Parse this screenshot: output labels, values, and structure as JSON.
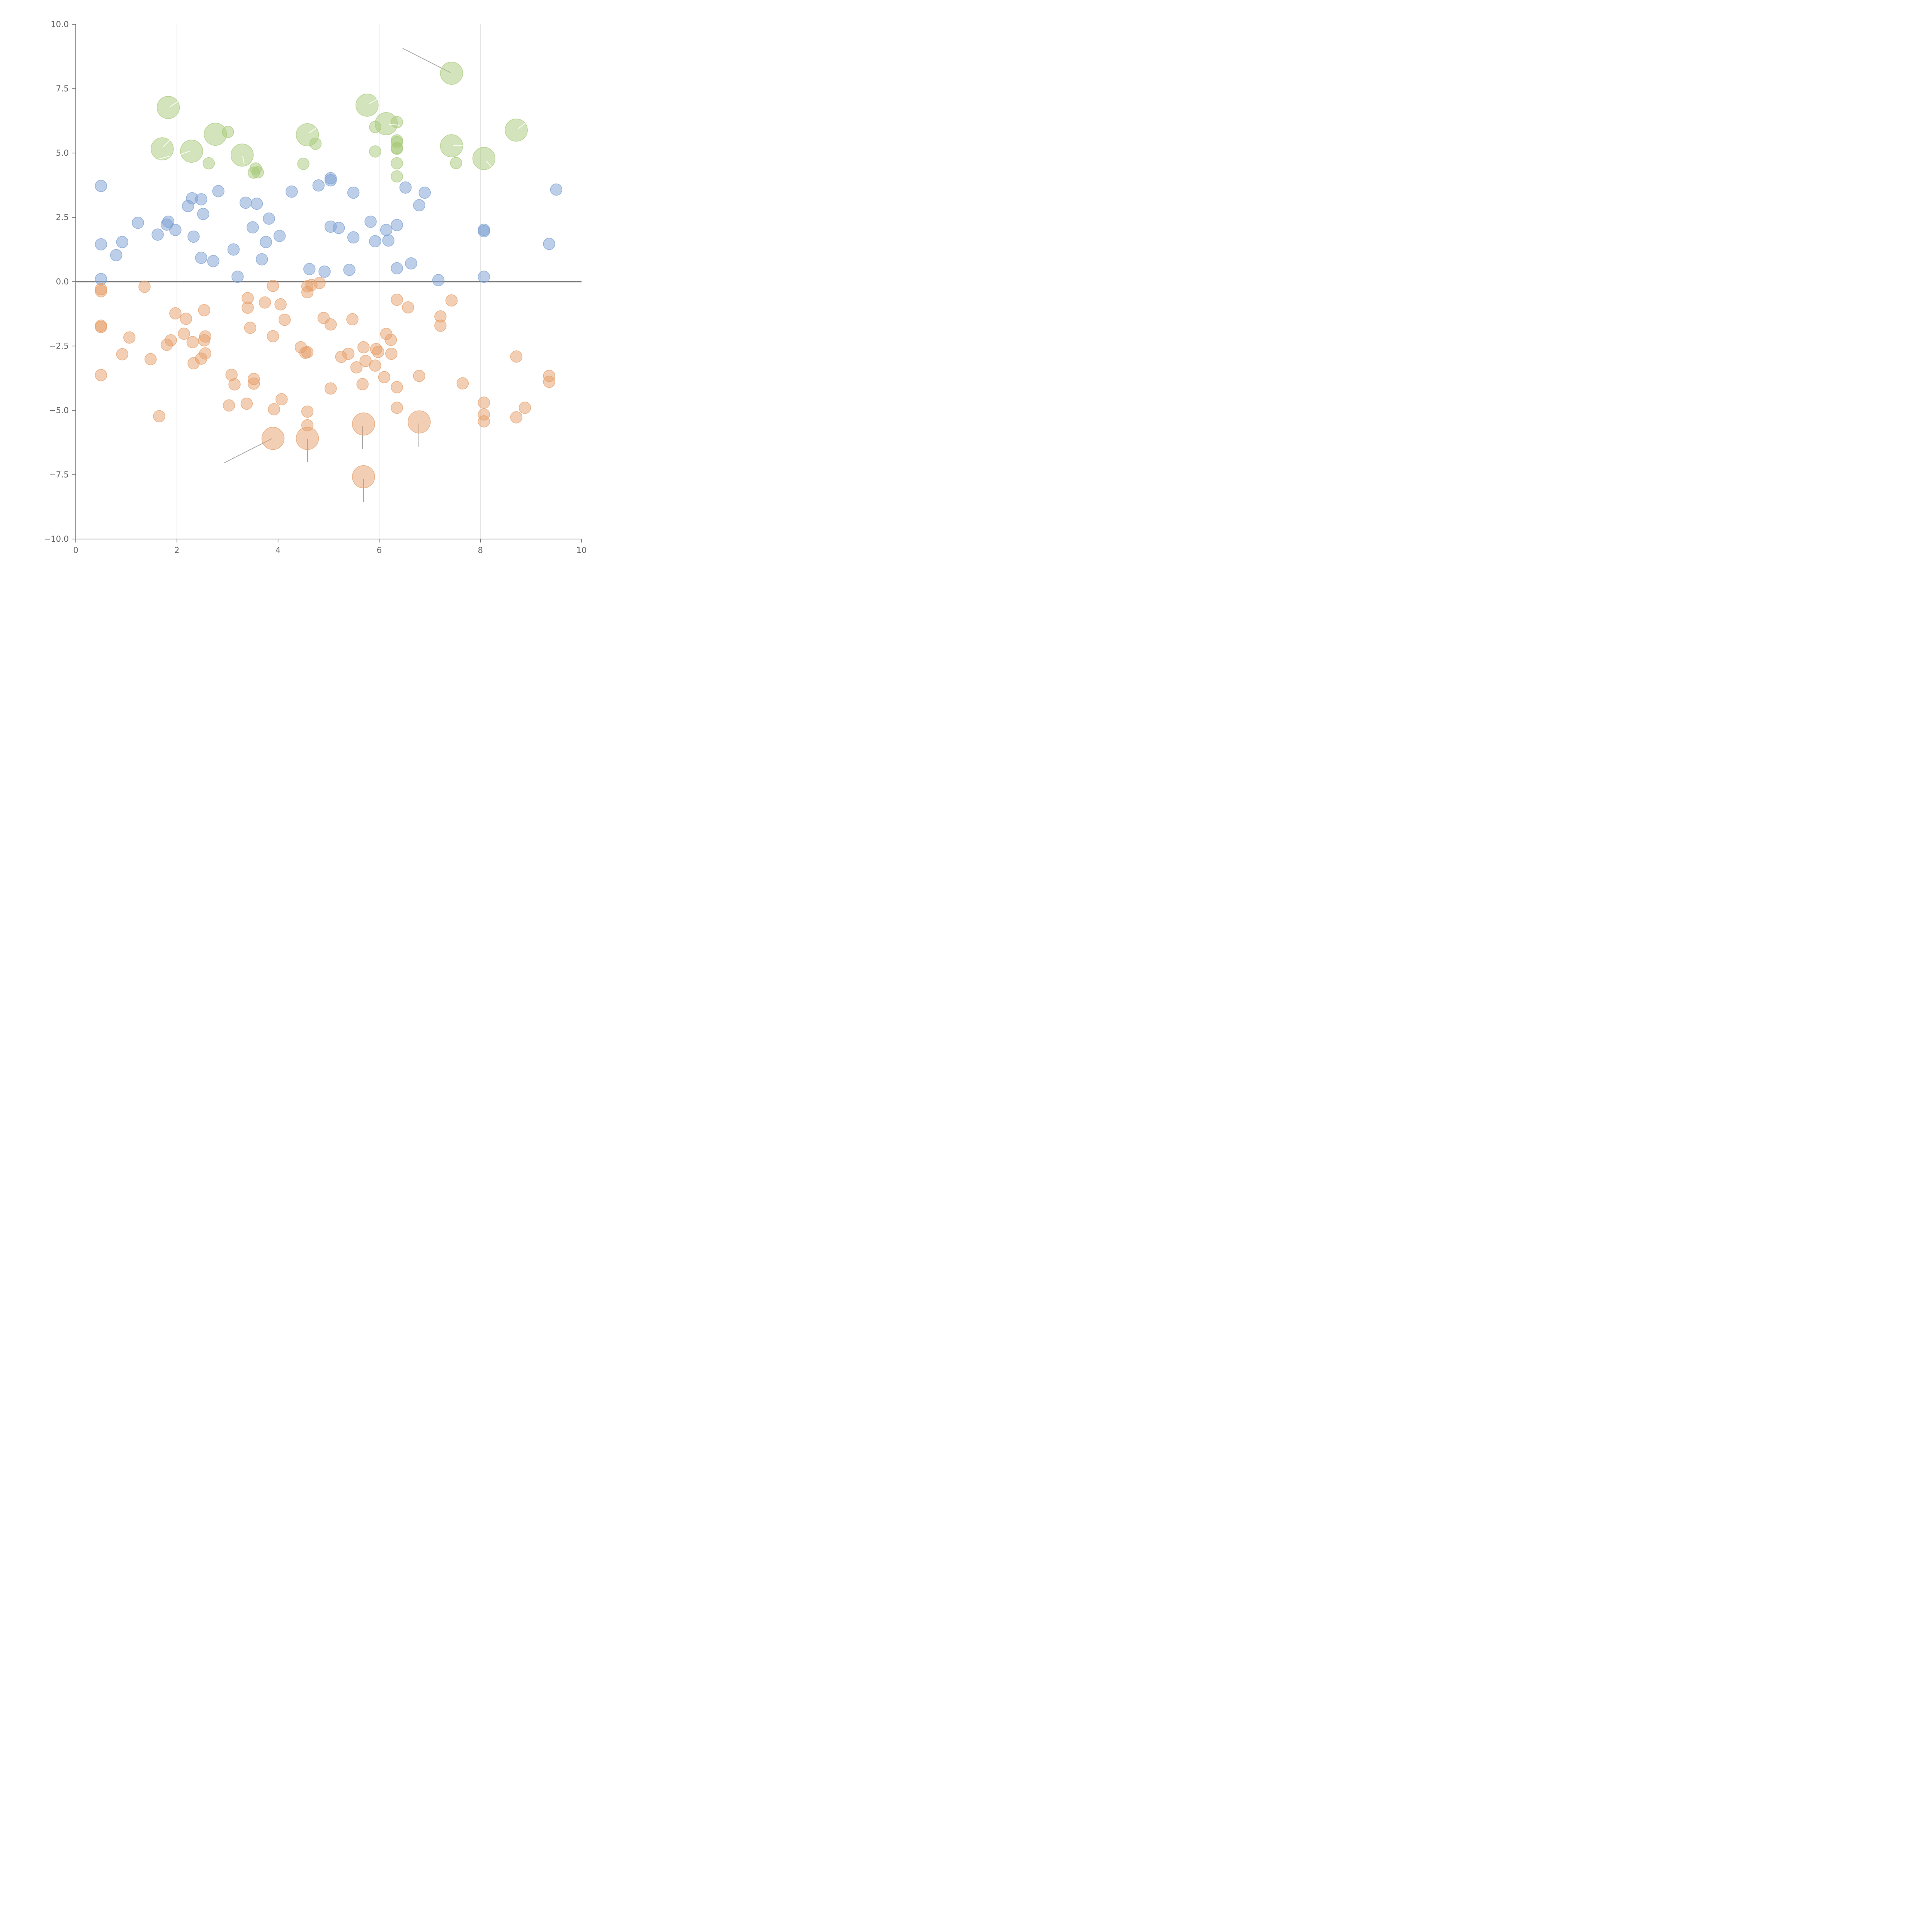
{
  "chart_data": {
    "type": "scatter",
    "title": "",
    "xlabel": "",
    "ylabel": "",
    "xlim": [
      0,
      10
    ],
    "ylim": [
      -10,
      10
    ],
    "x_ticks": [
      0,
      2,
      4,
      6,
      8,
      10
    ],
    "y_ticks": [
      -10,
      -7.5,
      -5,
      -2.5,
      0,
      2.5,
      5,
      7.5,
      10
    ],
    "x_tick_labels": [
      "0",
      "2",
      "4",
      "6",
      "8",
      "10"
    ],
    "y_tick_labels": [
      "−10.0",
      "−7.5",
      "−5.0",
      "−2.5",
      "0.0",
      "2.5",
      "5.0",
      "7.5",
      "10.0"
    ],
    "grid": {
      "x": true,
      "y": false
    },
    "zero_line": true,
    "legend": "none",
    "bubble_size_unit": "relative (1 = small point, 2 = large point)",
    "series": [
      {
        "color": "#7b9fd2",
        "points": [
          [
            0.5,
            3.72,
            1
          ],
          [
            0.5,
            1.45,
            1
          ],
          [
            0.5,
            0.1,
            1
          ],
          [
            0.8,
            1.03,
            1
          ],
          [
            0.92,
            1.54,
            1
          ],
          [
            1.23,
            2.29,
            1
          ],
          [
            1.62,
            1.83,
            1
          ],
          [
            1.8,
            2.22,
            1
          ],
          [
            1.83,
            2.33,
            1
          ],
          [
            1.97,
            2.01,
            1
          ],
          [
            2.22,
            2.94,
            1
          ],
          [
            2.3,
            3.24,
            1
          ],
          [
            2.33,
            1.75,
            1
          ],
          [
            2.48,
            3.2,
            1
          ],
          [
            2.48,
            0.93,
            1
          ],
          [
            2.52,
            2.63,
            1
          ],
          [
            2.72,
            0.8,
            1
          ],
          [
            2.82,
            3.52,
            1
          ],
          [
            3.12,
            1.25,
            1
          ],
          [
            3.2,
            0.19,
            1
          ],
          [
            3.36,
            3.07,
            1
          ],
          [
            3.5,
            2.11,
            1
          ],
          [
            3.58,
            3.03,
            1
          ],
          [
            3.68,
            0.87,
            1
          ],
          [
            3.76,
            1.54,
            1
          ],
          [
            3.82,
            2.45,
            1
          ],
          [
            4.03,
            1.78,
            1
          ],
          [
            4.27,
            3.5,
            1
          ],
          [
            4.62,
            0.49,
            1
          ],
          [
            4.8,
            3.74,
            1
          ],
          [
            4.92,
            0.39,
            1
          ],
          [
            5.04,
            4.02,
            1
          ],
          [
            5.04,
            3.94,
            1
          ],
          [
            5.04,
            2.14,
            1
          ],
          [
            5.2,
            2.09,
            1
          ],
          [
            5.41,
            0.46,
            1
          ],
          [
            5.49,
            3.46,
            1
          ],
          [
            5.49,
            1.72,
            1
          ],
          [
            5.83,
            2.33,
            1
          ],
          [
            5.92,
            1.57,
            1
          ],
          [
            6.14,
            2.01,
            1
          ],
          [
            6.18,
            1.6,
            1
          ],
          [
            6.35,
            2.2,
            1
          ],
          [
            6.35,
            0.52,
            1
          ],
          [
            6.52,
            3.66,
            1
          ],
          [
            6.63,
            0.71,
            1
          ],
          [
            6.79,
            2.97,
            1
          ],
          [
            6.9,
            3.46,
            1
          ],
          [
            7.17,
            0.06,
            1
          ],
          [
            8.07,
            2.02,
            1
          ],
          [
            8.07,
            1.96,
            1
          ],
          [
            8.07,
            0.19,
            1
          ],
          [
            9.36,
            1.47,
            1
          ],
          [
            9.5,
            3.58,
            1
          ]
        ]
      },
      {
        "color": "#e59f6a",
        "points": [
          [
            0.5,
            -0.29,
            1
          ],
          [
            0.5,
            -0.37,
            1
          ],
          [
            0.5,
            -1.71,
            1
          ],
          [
            0.5,
            -1.76,
            1
          ],
          [
            0.5,
            -3.63,
            1
          ],
          [
            0.92,
            -2.82,
            1
          ],
          [
            1.06,
            -2.17,
            1
          ],
          [
            1.36,
            -0.2,
            1
          ],
          [
            1.48,
            -3.01,
            1
          ],
          [
            1.65,
            -5.23,
            1
          ],
          [
            1.8,
            -2.45,
            1
          ],
          [
            1.88,
            -2.28,
            1
          ],
          [
            1.97,
            -1.23,
            1
          ],
          [
            2.14,
            -2.02,
            1
          ],
          [
            2.18,
            -1.44,
            1
          ],
          [
            2.31,
            -2.35,
            1
          ],
          [
            2.33,
            -3.17,
            1
          ],
          [
            2.48,
            -2.99,
            1
          ],
          [
            2.54,
            -2.28,
            1
          ],
          [
            2.54,
            -1.11,
            1
          ],
          [
            2.56,
            -2.13,
            1
          ],
          [
            2.56,
            -2.79,
            1
          ],
          [
            3.03,
            -4.81,
            1
          ],
          [
            3.08,
            -3.62,
            1
          ],
          [
            3.14,
            -3.99,
            1
          ],
          [
            3.38,
            -4.74,
            1
          ],
          [
            3.4,
            -0.64,
            1
          ],
          [
            3.4,
            -1.01,
            1
          ],
          [
            3.45,
            -1.79,
            1
          ],
          [
            3.52,
            -3.78,
            1
          ],
          [
            3.52,
            -3.96,
            1
          ],
          [
            3.74,
            -0.81,
            1
          ],
          [
            3.9,
            -0.16,
            1
          ],
          [
            3.9,
            -2.12,
            1
          ],
          [
            3.9,
            -6.09,
            2
          ],
          [
            3.92,
            -4.96,
            1
          ],
          [
            4.05,
            -0.88,
            1
          ],
          [
            4.07,
            -4.57,
            1
          ],
          [
            4.13,
            -1.48,
            1
          ],
          [
            4.45,
            -2.55,
            1
          ],
          [
            4.54,
            -2.76,
            1
          ],
          [
            4.58,
            -0.18,
            1
          ],
          [
            4.58,
            -0.41,
            1
          ],
          [
            4.58,
            -2.74,
            1
          ],
          [
            4.58,
            -5.05,
            1
          ],
          [
            4.58,
            -5.58,
            1
          ],
          [
            4.58,
            -6.09,
            2
          ],
          [
            4.66,
            -0.13,
            1
          ],
          [
            4.82,
            -0.05,
            1
          ],
          [
            4.9,
            -1.41,
            1
          ],
          [
            5.04,
            -1.66,
            1
          ],
          [
            5.04,
            -4.15,
            1
          ],
          [
            5.25,
            -2.92,
            1
          ],
          [
            5.39,
            -2.8,
            1
          ],
          [
            5.47,
            -1.46,
            1
          ],
          [
            5.55,
            -3.33,
            1
          ],
          [
            5.67,
            -3.98,
            1
          ],
          [
            5.69,
            -2.55,
            1
          ],
          [
            5.69,
            -5.53,
            2
          ],
          [
            5.69,
            -7.58,
            2
          ],
          [
            5.73,
            -3.08,
            1
          ],
          [
            5.92,
            -3.26,
            1
          ],
          [
            5.94,
            -2.62,
            1
          ],
          [
            5.98,
            -2.73,
            1
          ],
          [
            6.1,
            -3.71,
            1
          ],
          [
            6.14,
            -2.03,
            1
          ],
          [
            6.23,
            -2.26,
            1
          ],
          [
            6.24,
            -2.8,
            1
          ],
          [
            6.35,
            -0.7,
            1
          ],
          [
            6.35,
            -4.1,
            1
          ],
          [
            6.35,
            -4.9,
            1
          ],
          [
            6.57,
            -1.0,
            1
          ],
          [
            6.79,
            -3.66,
            1
          ],
          [
            6.79,
            -5.45,
            2
          ],
          [
            7.21,
            -1.35,
            1
          ],
          [
            7.21,
            -1.71,
            1
          ],
          [
            7.43,
            -0.73,
            1
          ],
          [
            7.65,
            -3.95,
            1
          ],
          [
            8.07,
            -4.7,
            1
          ],
          [
            8.07,
            -5.16,
            1
          ],
          [
            8.07,
            -5.43,
            1
          ],
          [
            8.71,
            -2.91,
            1
          ],
          [
            8.71,
            -5.27,
            1
          ],
          [
            8.88,
            -4.9,
            1
          ],
          [
            9.36,
            -3.66,
            1
          ],
          [
            9.36,
            -3.89,
            1
          ]
        ]
      },
      {
        "color": "#a8c97a",
        "points": [
          [
            1.71,
            5.16,
            2
          ],
          [
            1.83,
            6.77,
            2
          ],
          [
            2.29,
            5.07,
            2
          ],
          [
            2.63,
            4.6,
            1
          ],
          [
            2.76,
            5.73,
            2
          ],
          [
            3.01,
            5.82,
            1
          ],
          [
            3.29,
            4.92,
            2
          ],
          [
            3.52,
            4.24,
            1
          ],
          [
            3.56,
            4.4,
            1
          ],
          [
            3.6,
            4.25,
            1
          ],
          [
            4.5,
            4.58,
            1
          ],
          [
            4.58,
            5.71,
            2
          ],
          [
            4.74,
            5.36,
            1
          ],
          [
            5.76,
            6.86,
            2
          ],
          [
            5.92,
            6.01,
            1
          ],
          [
            5.92,
            5.06,
            1
          ],
          [
            6.14,
            6.14,
            2
          ],
          [
            6.35,
            6.2,
            1
          ],
          [
            6.35,
            5.49,
            1
          ],
          [
            6.35,
            5.42,
            1
          ],
          [
            6.35,
            5.2,
            1
          ],
          [
            6.35,
            5.17,
            1
          ],
          [
            6.35,
            4.6,
            1
          ],
          [
            6.35,
            4.09,
            1
          ],
          [
            7.43,
            8.1,
            2
          ],
          [
            7.43,
            5.28,
            2
          ],
          [
            7.52,
            4.61,
            1
          ],
          [
            8.07,
            4.79,
            2
          ],
          [
            8.71,
            5.89,
            2
          ]
        ]
      }
    ]
  }
}
